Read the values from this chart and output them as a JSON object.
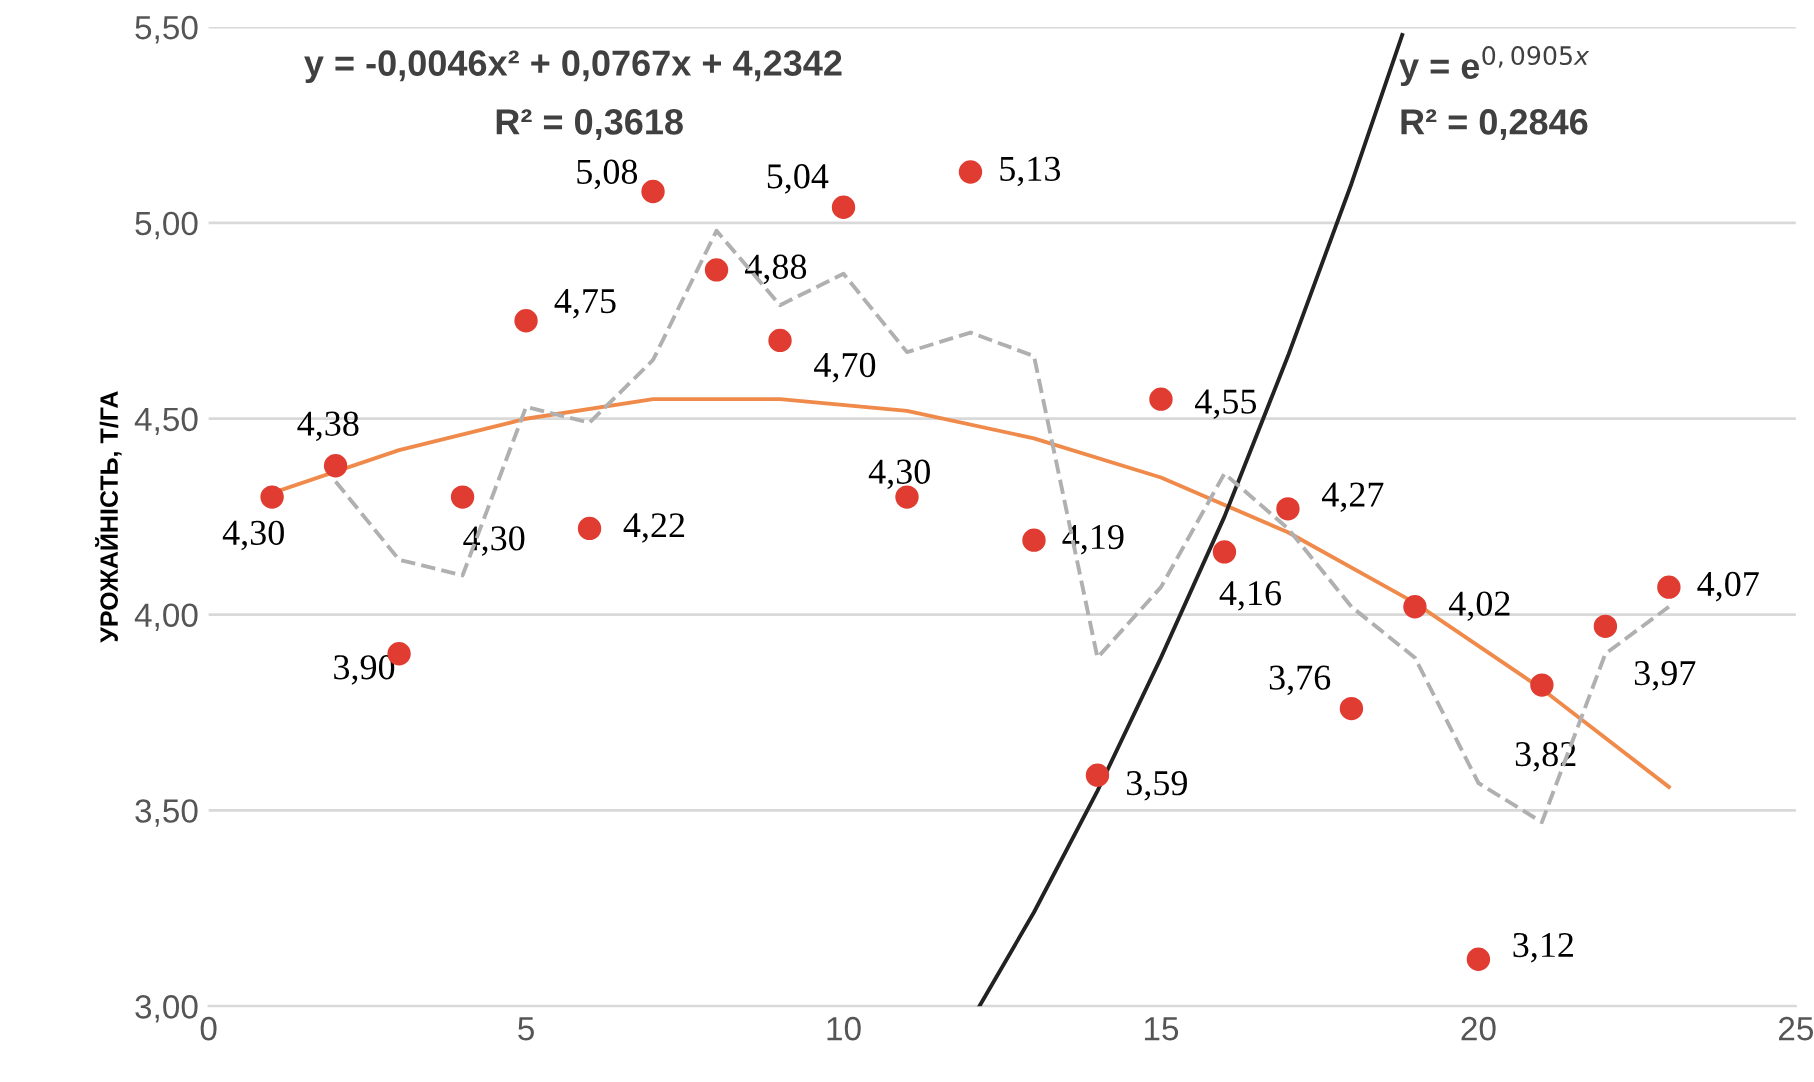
{
  "chart_data": {
    "type": "scatter",
    "ylabel": "УРОЖАЙНІСТЬ, Т/ГА",
    "xlim": [
      0,
      25
    ],
    "xticks": [
      0,
      5,
      10,
      15,
      20,
      25
    ],
    "ylim": [
      3.0,
      5.5
    ],
    "yticks": [
      {
        "value": 3.0,
        "label": "3,00"
      },
      {
        "value": 3.5,
        "label": "3,50"
      },
      {
        "value": 4.0,
        "label": "4,00"
      },
      {
        "value": 4.5,
        "label": "4,50"
      },
      {
        "value": 5.0,
        "label": "5,00"
      },
      {
        "value": 5.5,
        "label": "5,50"
      }
    ],
    "grid": "y",
    "legend": false,
    "annotations": [
      "y = -0,0046x² + 0,0767x + 4,2342",
      "R² = 0,3618",
      "y = e$^{0,0905x}$",
      "R² = 0,2846"
    ],
    "series": [
      {
        "color": "#e03c31",
        "marker": "circle",
        "x": [
          1,
          2,
          3,
          4,
          5,
          6,
          7,
          8,
          9,
          10,
          11,
          12,
          13,
          14,
          15,
          16,
          17,
          18,
          19,
          20,
          21,
          22,
          23
        ],
        "values": [
          4.3,
          4.38,
          3.9,
          4.3,
          4.75,
          4.22,
          5.08,
          4.88,
          4.7,
          5.04,
          4.3,
          5.13,
          4.19,
          3.59,
          4.55,
          4.16,
          4.27,
          3.76,
          4.02,
          3.12,
          3.82,
          3.97,
          4.07
        ],
        "value_labels": [
          "4,30",
          "4,38",
          "3,90",
          "4,30",
          "4,75",
          "4,22",
          "5,08",
          "4,88",
          "4,70",
          "5,04",
          "4,30",
          "5,13",
          "4,19",
          "3,59",
          "4,55",
          "4,16",
          "4,27",
          "3,76",
          "4,02",
          "3,12",
          "3,82",
          "3,97",
          "4,07"
        ]
      },
      {
        "type": "line",
        "color": "#f08a4b",
        "line_style": "solid",
        "x": [
          1,
          3,
          5,
          7,
          9,
          11,
          13,
          15,
          17,
          19,
          21,
          23
        ],
        "values": [
          4.31,
          4.42,
          4.5,
          4.55,
          4.55,
          4.52,
          4.45,
          4.35,
          4.21,
          4.03,
          3.81,
          3.56
        ]
      },
      {
        "type": "line",
        "color": "#222222",
        "line_style": "solid",
        "x": [
          12.14,
          13,
          14,
          15,
          16,
          17,
          18,
          18.8
        ],
        "values": [
          3.0,
          3.24,
          3.55,
          3.89,
          4.25,
          4.66,
          5.1,
          5.48
        ]
      },
      {
        "type": "line",
        "color": "#b0b0b0",
        "line_style": "dashed",
        "x": [
          2,
          3,
          4,
          5,
          6,
          7,
          8,
          9,
          10,
          11,
          12,
          13,
          14,
          15,
          16,
          17,
          18,
          19,
          20,
          21,
          22,
          23
        ],
        "values": [
          4.34,
          4.14,
          4.1,
          4.53,
          4.49,
          4.65,
          4.98,
          4.79,
          4.87,
          4.67,
          4.72,
          4.66,
          3.89,
          4.07,
          4.36,
          4.22,
          4.02,
          3.89,
          3.57,
          3.47,
          3.9,
          4.02
        ]
      }
    ]
  }
}
